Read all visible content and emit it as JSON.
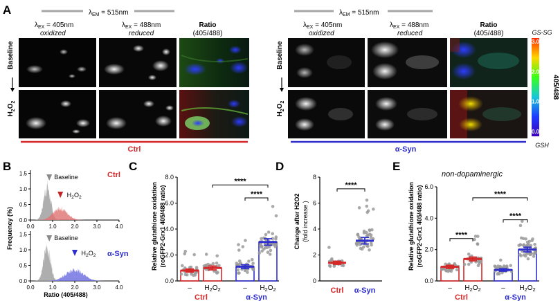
{
  "panel_a": {
    "label": "A",
    "lambda_em": "λEM = 515nm",
    "lambda_em_sym": "λ",
    "lambda_em_sub": "EM",
    "lambda_em_rest": " = 515nm",
    "col_oxidized_sym": "λ",
    "col_oxidized_sub": "EX",
    "col_oxidized_rest": " = 405nm",
    "col_oxidized_state": "oxidized",
    "col_reduced_sym": "λ",
    "col_reduced_sub": "EX",
    "col_reduced_rest": " = 488nm",
    "col_reduced_state": "reduced",
    "col_ratio": "Ratio",
    "col_ratio_sub": "(405/488)",
    "row_baseline": "Baseline",
    "row_h2o2_main": "H",
    "row_h2o2_sub": "2",
    "row_h2o2_o": "O",
    "row_h2o2_sub2": "2",
    "group_ctrl": "Ctrl",
    "group_asyn": "α-Syn",
    "colorbar_top": "GS-SG",
    "colorbar_bottom": "GSH",
    "colorbar_title": "405/488",
    "colorbar_ticks": [
      "3.0",
      "2.0",
      "1.0",
      "0.0"
    ],
    "colors": {
      "ctrl": "#d62728",
      "asyn": "#2e2ecc"
    }
  },
  "panel_b": {
    "label": "B",
    "ylabel": "Frequency (%)",
    "xlabel": "Ratio (405/488)",
    "yticks": [
      "1.5",
      "1.0",
      "0.5",
      "0.0"
    ],
    "xticks": [
      "0.0",
      "1.0",
      "2.0",
      "3.0",
      "4.0"
    ],
    "ctrl_label": "Ctrl",
    "asyn_label": "α-Syn",
    "baseline_label": "Baseline",
    "h2o2_label": "H2O2"
  },
  "panel_c": {
    "label": "C",
    "ylabel": "Relative glutathione oxidation",
    "ylabel2": "(roGFP2-Grx1 405/488 ratio)",
    "yticks": [
      "0.0",
      "2.0",
      "4.0",
      "6.0",
      "8.0"
    ],
    "sig_top": "****",
    "sig_inner": "****",
    "xticks": [
      "–",
      "H2O2",
      "–",
      "H2O2"
    ],
    "groups": [
      "Ctrl",
      "α-Syn"
    ]
  },
  "panel_d": {
    "label": "D",
    "ylabel": "Change after H2O2",
    "ylabel2": "(fold increase )",
    "yticks": [
      "0",
      "2",
      "4",
      "6",
      "8"
    ],
    "sig": "****",
    "groups": [
      "Ctrl",
      "α-Syn"
    ]
  },
  "panel_e": {
    "label": "E",
    "subtitle": "non-dopaminergic",
    "ylabel": "Relative glutathione oxidation",
    "ylabel2": "(roGFP2-Grx1 405/488 ratio)",
    "yticks": [
      "0.0",
      "2.0",
      "4.0",
      "6.0"
    ],
    "sig_top": "****",
    "sig_ctrl": "****",
    "sig_asyn": "****",
    "xticks": [
      "–",
      "H2O2",
      "–",
      "H2O2"
    ],
    "groups": [
      "Ctrl",
      "α-Syn"
    ]
  },
  "chart_data": [
    {
      "type": "bar",
      "panel": "C",
      "categories": [
        "Ctrl –",
        "Ctrl H2O2",
        "α-Syn –",
        "α-Syn H2O2"
      ],
      "values": [
        0.8,
        1.0,
        1.1,
        3.0
      ],
      "ylim": [
        0,
        8
      ]
    },
    {
      "type": "scatter",
      "panel": "D",
      "categories": [
        "Ctrl",
        "α-Syn"
      ],
      "values": [
        1.4,
        3.1
      ],
      "ylim": [
        0,
        8
      ]
    },
    {
      "type": "bar",
      "panel": "E",
      "categories": [
        "Ctrl –",
        "Ctrl H2O2",
        "α-Syn –",
        "α-Syn H2O2"
      ],
      "values": [
        0.9,
        1.4,
        0.7,
        2.0
      ],
      "ylim": [
        0,
        6
      ]
    }
  ]
}
